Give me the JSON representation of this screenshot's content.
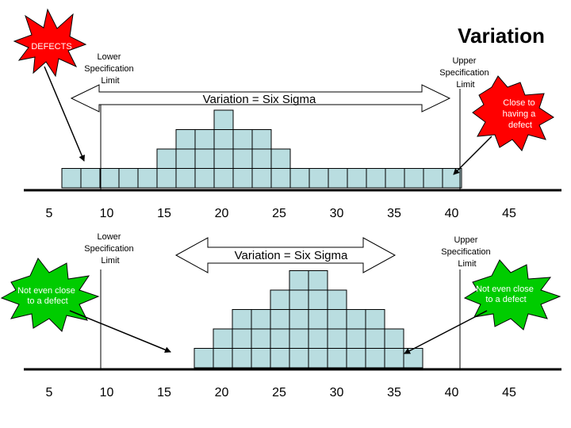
{
  "title": "Variation",
  "top_panel": {
    "lower_limit_label": [
      "Lower",
      "Specification",
      "Limit"
    ],
    "upper_limit_label": [
      "Upper",
      "Specification",
      "Limit"
    ],
    "variation_label": "Variation = Six Sigma",
    "defects_label": "DEFECTS",
    "close_callout": [
      "Close to",
      "having a",
      "defect"
    ],
    "axis_ticks": [
      "5",
      "10",
      "15",
      "20",
      "25",
      "30",
      "35",
      "40",
      "45"
    ],
    "histogram_columns": [
      1,
      1,
      1,
      1,
      1,
      2,
      3,
      3,
      4,
      3,
      3,
      2,
      1,
      1,
      1,
      1,
      1,
      1,
      1,
      1,
      1
    ]
  },
  "bottom_panel": {
    "lower_limit_label": [
      "Lower",
      "Specification",
      "Limit"
    ],
    "upper_limit_label": [
      "Upper",
      "Specification",
      "Limit"
    ],
    "variation_label": "Variation = Six Sigma",
    "left_callout": [
      "Not even close",
      "to a defect"
    ],
    "right_callout": [
      "Not even close",
      "to a defect"
    ],
    "axis_ticks": [
      "5",
      "10",
      "15",
      "20",
      "25",
      "30",
      "35",
      "40",
      "45"
    ],
    "histogram_columns": [
      1,
      2,
      3,
      3,
      4,
      5,
      5,
      4,
      3,
      3,
      2,
      1
    ]
  },
  "colors": {
    "cell_fill": "#b9dde0",
    "red_burst": "#ff0000",
    "green_burst": "#00cc00"
  }
}
